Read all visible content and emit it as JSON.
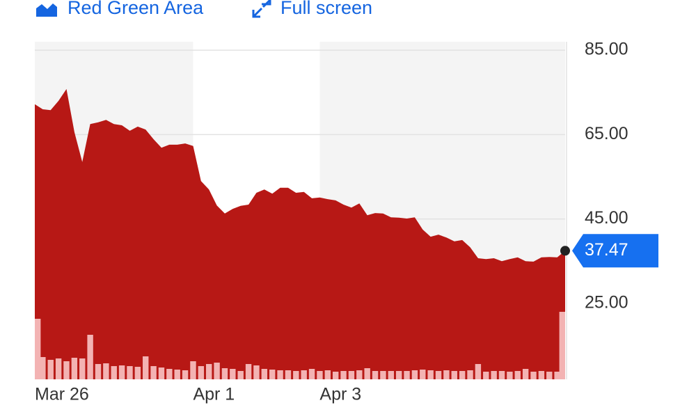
{
  "toolbar": {
    "chart_type": "Red Green Area",
    "full_screen": "Full screen"
  },
  "chart_data": {
    "type": "area",
    "categories": [
      "Mar 26",
      null,
      null,
      null,
      null,
      null,
      null,
      null,
      null,
      null,
      null,
      null,
      null,
      null,
      null,
      null,
      null,
      null,
      null,
      null,
      "Apr 1",
      null,
      null,
      null,
      null,
      null,
      null,
      null,
      null,
      null,
      null,
      null,
      null,
      null,
      null,
      null,
      "Apr 3",
      null,
      null,
      null,
      null,
      null,
      null,
      null,
      null,
      null,
      null,
      null,
      null,
      null,
      null,
      null,
      null,
      null,
      null,
      null,
      null,
      null,
      null,
      null,
      null,
      null,
      null,
      null,
      null,
      null,
      null,
      null
    ],
    "values": [
      72.2,
      71.0,
      70.8,
      73.0,
      75.8,
      65.6,
      58.5,
      67.5,
      67.9,
      68.5,
      67.5,
      67.2,
      65.9,
      66.9,
      66.2,
      63.9,
      61.9,
      62.6,
      62.6,
      62.9,
      62.3,
      54.0,
      52.0,
      48.2,
      46.3,
      47.4,
      48.1,
      48.4,
      51.2,
      52.0,
      51.0,
      52.4,
      52.4,
      51.2,
      51.4,
      49.9,
      50.1,
      49.7,
      49.4,
      48.4,
      47.7,
      48.7,
      45.9,
      46.4,
      46.3,
      45.4,
      45.3,
      45.1,
      45.4,
      42.5,
      40.8,
      41.3,
      40.6,
      39.7,
      40.0,
      38.3,
      35.7,
      35.5,
      35.7,
      35.0,
      35.5,
      35.9,
      35.0,
      34.9,
      35.9,
      36.0,
      35.9,
      37.47
    ],
    "color": "#b71815",
    "volume": {
      "values": [
        87,
        32,
        28,
        30,
        26,
        31,
        30,
        64,
        22,
        23,
        19,
        20,
        19,
        18,
        33,
        19,
        17,
        15,
        14,
        13,
        26,
        19,
        22,
        24,
        16,
        15,
        12,
        22,
        20,
        15,
        14,
        13,
        13,
        12,
        13,
        15,
        12,
        13,
        11,
        12,
        12,
        13,
        16,
        12,
        12,
        12,
        12,
        12,
        13,
        14,
        13,
        12,
        13,
        12,
        12,
        13,
        22,
        11,
        12,
        12,
        11,
        12,
        15,
        11,
        12,
        11,
        11,
        97
      ],
      "color": "#f3b3b3",
      "lim": [
        0,
        100
      ]
    },
    "ylim": [
      7,
      87
    ],
    "yticks": [
      {
        "value": 25,
        "label": "25.00"
      },
      {
        "value": 45,
        "label": "45.00"
      },
      {
        "value": 65,
        "label": "65.00"
      },
      {
        "value": 85,
        "label": "85.00"
      }
    ],
    "grid": true
  }
}
